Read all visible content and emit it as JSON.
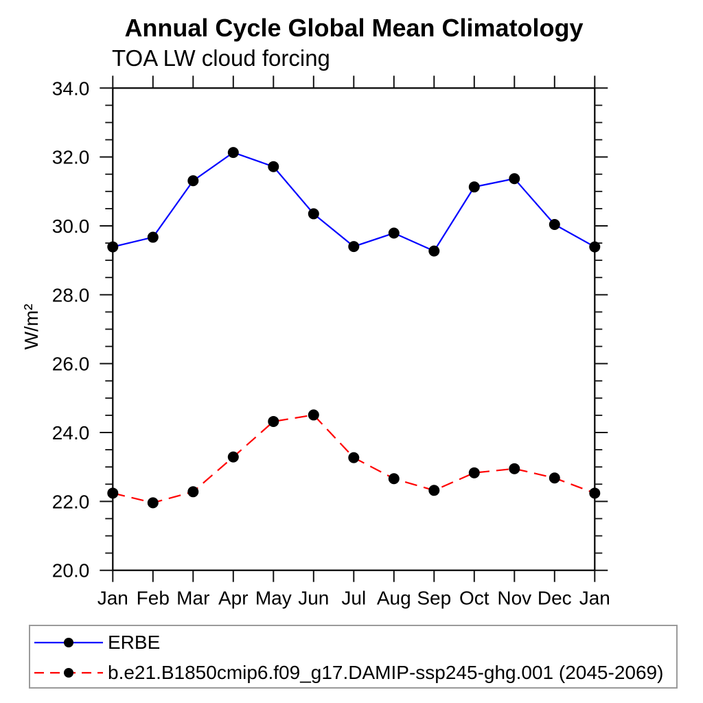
{
  "chart_data": {
    "type": "line",
    "title": "Annual Cycle Global Mean Climatology",
    "subtitle": "TOA LW cloud forcing",
    "ylabel": "W/m²",
    "xlabel": "",
    "categories": [
      "Jan",
      "Feb",
      "Mar",
      "Apr",
      "May",
      "Jun",
      "Jul",
      "Aug",
      "Sep",
      "Oct",
      "Nov",
      "Dec",
      "Jan"
    ],
    "ylim": [
      20.0,
      34.0
    ],
    "y_major_tick_step": 2.0,
    "y_minor_tick_step": 0.5,
    "y_tick_labels": [
      "20.0",
      "22.0",
      "24.0",
      "26.0",
      "28.0",
      "30.0",
      "32.0",
      "34.0"
    ],
    "grid": false,
    "legend_position": "bottom-left boxed",
    "series": [
      {
        "name": "ERBE",
        "line_color": "#0000ff",
        "line_style": "solid",
        "marker": "filled-circle",
        "marker_color": "#000000",
        "values": [
          29.39,
          29.67,
          31.31,
          32.13,
          31.72,
          30.35,
          29.4,
          29.79,
          29.27,
          31.13,
          31.37,
          30.04,
          29.39
        ]
      },
      {
        "name": "b.e21.B1850cmip6.f09_g17.DAMIP-ssp245-ghg.001 (2045-2069)",
        "line_color": "#ff0000",
        "line_style": "dashed",
        "marker": "filled-circle",
        "marker_color": "#000000",
        "values": [
          22.24,
          21.96,
          22.28,
          23.29,
          24.32,
          24.51,
          23.27,
          22.66,
          22.32,
          22.83,
          22.95,
          22.68,
          22.24
        ]
      }
    ]
  }
}
